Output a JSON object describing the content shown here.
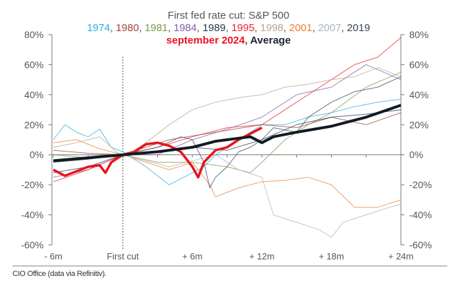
{
  "chart_data": {
    "type": "line",
    "title": "First fed rate cut: S&P 500",
    "x_tick_labels": [
      "- 6m",
      "First cut",
      "+ 6m",
      "+ 12m",
      "+ 18m",
      "+ 24m"
    ],
    "x_ticks_months": [
      -6,
      0,
      6,
      12,
      18,
      24
    ],
    "xlim": [
      -6,
      24
    ],
    "ylim": [
      -60,
      80
    ],
    "y_ticks": [
      -60,
      -40,
      -20,
      0,
      20,
      40,
      60,
      80
    ],
    "y_tick_labels": [
      "-60%",
      "-40%",
      "-20%",
      "0%",
      "20%",
      "40%",
      "60%",
      "80%"
    ],
    "y_axis_sides": "both",
    "vertical_marker": "First cut (dashed)",
    "grid": false,
    "legend_placement": "top (in title)",
    "series": [
      {
        "name": "1974",
        "color": "#29aee3",
        "width": "thin",
        "x": [
          -6,
          -5,
          -4,
          -3,
          -2,
          -1,
          0,
          2,
          4,
          6,
          7,
          8,
          10,
          12,
          14,
          16,
          18,
          20,
          22,
          24
        ],
        "y": [
          10,
          20,
          15,
          12,
          17,
          5,
          2,
          -8,
          -20,
          -12,
          -8,
          0,
          10,
          20,
          20,
          25,
          28,
          32,
          35,
          37
        ]
      },
      {
        "name": "1980",
        "color": "#a0433a",
        "width": "thin",
        "x": [
          -6,
          -3,
          0,
          4,
          8,
          12,
          15,
          18,
          21,
          24
        ],
        "y": [
          3,
          1,
          0,
          10,
          15,
          20,
          18,
          25,
          20,
          28
        ]
      },
      {
        "name": "1981",
        "color": "#7a9a45",
        "width": "thin",
        "x": [
          -6,
          -3,
          0,
          3,
          6,
          9,
          11,
          12,
          14,
          16,
          18,
          21,
          24
        ],
        "y": [
          0,
          -2,
          0,
          -5,
          -5,
          -8,
          -12,
          -5,
          10,
          20,
          28,
          45,
          55
        ]
      },
      {
        "name": "1984",
        "color": "#7b5ea8",
        "width": "thin",
        "x": [
          -6,
          -3,
          0,
          3,
          6,
          9,
          12,
          15,
          18,
          21,
          24
        ],
        "y": [
          -15,
          -10,
          0,
          0,
          10,
          17,
          25,
          40,
          45,
          60,
          50
        ]
      },
      {
        "name": "1989",
        "color": "#1d3a4f",
        "width": "thin",
        "x": [
          -6,
          -3,
          0,
          3,
          6,
          9,
          12,
          15,
          18,
          21,
          24
        ],
        "y": [
          -12,
          -8,
          0,
          2,
          5,
          3,
          10,
          20,
          25,
          27,
          30
        ]
      },
      {
        "name": "1995",
        "color": "#e8232a",
        "width": "thin",
        "x": [
          -6,
          -3,
          0,
          3,
          6,
          9,
          12,
          15,
          18,
          20,
          22,
          24
        ],
        "y": [
          -18,
          -10,
          0,
          5,
          12,
          18,
          20,
          35,
          50,
          60,
          65,
          78
        ]
      },
      {
        "name": "1998",
        "color": "#b9a48f",
        "width": "thin",
        "x": [
          -6,
          -4,
          -2,
          -1,
          0,
          2,
          4,
          6,
          8,
          10,
          12,
          14,
          16,
          18,
          20,
          22,
          24
        ],
        "y": [
          5,
          8,
          12,
          5,
          -2,
          8,
          20,
          30,
          35,
          38,
          40,
          45,
          47,
          50,
          52,
          58,
          52
        ]
      },
      {
        "name": "2001",
        "color": "#ee7d2e",
        "width": "thin",
        "x": [
          -6,
          -4,
          -2,
          0,
          2,
          4,
          6,
          7.5,
          8,
          10,
          12,
          14,
          16,
          18,
          20,
          22,
          24
        ],
        "y": [
          8,
          10,
          4,
          0,
          -5,
          -10,
          -5,
          -20,
          -28,
          -22,
          -18,
          -17,
          -15,
          -20,
          -35,
          -35,
          -30
        ]
      },
      {
        "name": "2007",
        "color": "#a8b4bd",
        "width": "thin",
        "x": [
          -6,
          -3,
          0,
          4,
          8,
          10,
          12,
          13,
          15,
          17,
          18,
          19,
          21,
          23,
          24
        ],
        "y": [
          -4,
          -2,
          0,
          -8,
          0,
          -10,
          -15,
          -40,
          -45,
          -50,
          -55,
          -45,
          -40,
          -35,
          -33
        ]
      },
      {
        "name": "2019",
        "color": "#3a4556",
        "width": "thin",
        "x": [
          -6,
          -3,
          0,
          3,
          5,
          6,
          7,
          7.5,
          8,
          9,
          10,
          11,
          12,
          13,
          15,
          16,
          18,
          20,
          22,
          24
        ],
        "y": [
          -5,
          -3,
          0,
          5,
          12,
          10,
          -5,
          -22,
          -15,
          -8,
          2,
          5,
          10,
          18,
          15,
          25,
          35,
          42,
          45,
          52
        ]
      },
      {
        "name": "september 2024",
        "color": "#e8141c",
        "width": "thick",
        "x": [
          -6,
          -5,
          -4,
          -3,
          -2,
          -1.5,
          -1,
          0,
          1,
          2,
          3,
          4,
          5,
          6,
          6.5,
          7,
          8,
          9,
          10,
          11,
          12
        ],
        "y": [
          -10,
          -14,
          -11,
          -8,
          -7,
          -12,
          -5,
          0,
          2,
          7,
          8,
          6,
          2,
          -8,
          -15,
          -5,
          3,
          5,
          10,
          14,
          18
        ]
      },
      {
        "name": "Average",
        "color": "#111a24",
        "width": "thick",
        "x": [
          -6,
          -3,
          0,
          3,
          6,
          8,
          9,
          10,
          11,
          12,
          13,
          15,
          18,
          21,
          24
        ],
        "y": [
          -4,
          -2,
          0,
          2,
          5,
          9,
          10,
          11,
          12,
          8,
          12,
          15,
          19,
          25,
          33
        ]
      }
    ]
  },
  "footer": "CIO Office (data via Refinitiv)."
}
